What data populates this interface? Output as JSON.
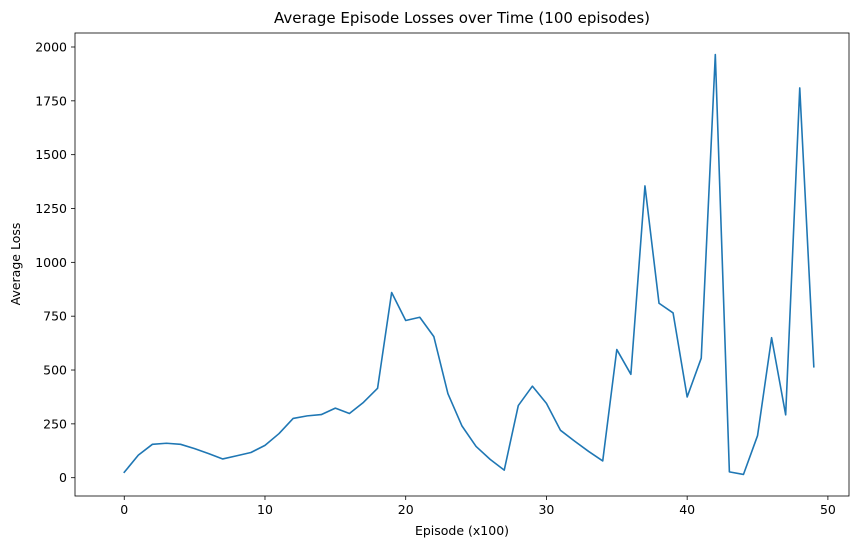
{
  "chart_data": {
    "type": "line",
    "title": "Average Episode Losses over Time (100 episodes)",
    "xlabel": "Episode (x100)",
    "ylabel": "Average Loss",
    "xlim": [
      -3.5,
      51.5
    ],
    "ylim": [
      -85,
      2065
    ],
    "xticks": [
      0,
      10,
      20,
      30,
      40,
      50
    ],
    "yticks": [
      0,
      250,
      500,
      750,
      1000,
      1250,
      1500,
      1750,
      2000
    ],
    "grid": false,
    "series": [
      {
        "color": "#1f77b4",
        "x": [
          0,
          1,
          2,
          3,
          4,
          5,
          6,
          7,
          8,
          9,
          10,
          11,
          12,
          13,
          14,
          15,
          16,
          17,
          18,
          19,
          20,
          21,
          22,
          23,
          24,
          25,
          26,
          27,
          28,
          29,
          30,
          31,
          32,
          33,
          34,
          35,
          36,
          37,
          38,
          39,
          40,
          41,
          42,
          43,
          44,
          45,
          46,
          47,
          48,
          49
        ],
        "y": [
          25,
          105,
          155,
          160,
          155,
          135,
          112,
          87,
          102,
          117,
          150,
          205,
          275,
          287,
          293,
          323,
          298,
          350,
          415,
          860,
          730,
          745,
          655,
          390,
          240,
          145,
          85,
          35,
          335,
          425,
          345,
          220,
          170,
          122,
          78,
          595,
          480,
          1355,
          810,
          765,
          375,
          555,
          1965,
          27,
          15,
          195,
          650,
          292,
          1810,
          515
        ]
      }
    ]
  }
}
